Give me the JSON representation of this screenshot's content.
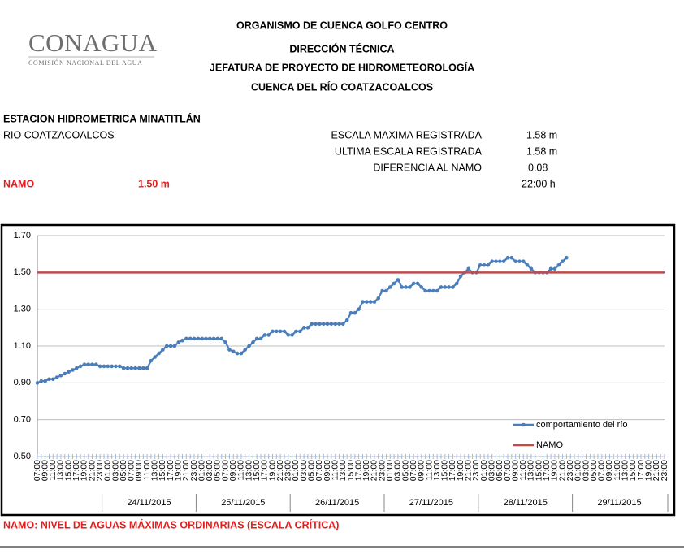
{
  "header": {
    "logo": "CONAGUA",
    "logo_subtitle": "COMISIÓN NACIONAL DEL AGUA",
    "lines": [
      "ORGANISMO DE CUENCA GOLFO CENTRO",
      "DIRECCIÓN TÉCNICA",
      "JEFATURA DE PROYECTO DE HIDROMETEOROLOGÍA",
      "CUENCA DEL RÍO COATZACOALCOS"
    ]
  },
  "station": {
    "name": "ESTACION HIDROMETRICA MINATITLÁN",
    "river": "RIO COATZACOALCOS",
    "max_label": "ESCALA MAXIMA REGISTRADA",
    "max_value": "1.58 m",
    "last_label": "ULTIMA ESCALA REGISTRADA",
    "last_value": "1.58 m",
    "diff_label": "DIFERENCIA AL NAMO",
    "diff_value": "0.08",
    "time": "22:00 h",
    "namo_label": "NAMO",
    "namo_value": "1.50 m"
  },
  "footer": "NAMO: NIVEL DE AGUAS MÁXIMAS ORDINARIAS (ESCALA CRÍTICA)",
  "chart_data": {
    "type": "line",
    "categories": [
      "07:00",
      null,
      "09:00",
      null,
      "11:00",
      null,
      "13:00",
      null,
      "15:00",
      null,
      "17:00",
      null,
      "19:00",
      null,
      "21:00",
      null,
      "23:00",
      null,
      "01:00",
      null,
      "03:00",
      null,
      "05:00",
      null,
      "07:00",
      null,
      "09:00",
      null,
      "11:00",
      null,
      "13:00",
      null,
      "15:00",
      null,
      "17:00",
      null,
      "19:00",
      null,
      "21:00",
      null,
      "23:00",
      null,
      "01:00",
      null,
      "03:00",
      null,
      "05:00",
      null,
      "07:00",
      null,
      "09:00",
      null,
      "11:00",
      null,
      "13:00",
      null,
      "15:00",
      null,
      "17:00",
      null,
      "19:00",
      null,
      "21:00",
      null,
      "23:00",
      null,
      "01:00",
      null,
      "03:00",
      null,
      "05:00",
      null,
      "07:00",
      null,
      "09:00",
      null,
      "11:00",
      null,
      "13:00",
      null,
      "15:00",
      null,
      "17:00",
      null,
      "19:00",
      null,
      "21:00",
      null,
      "23:00",
      null,
      "01:00",
      null,
      "03:00",
      null,
      "05:00",
      null,
      "07:00",
      null,
      "09:00",
      null,
      "11:00",
      null,
      "13:00",
      null,
      "15:00",
      null,
      "17:00",
      null,
      "19:00",
      null,
      "21:00",
      null,
      "23:00",
      null,
      "01:00",
      null,
      "03:00",
      null,
      "05:00",
      null,
      "07:00",
      null,
      "09:00",
      null,
      "11:00",
      null,
      "13:00",
      null,
      "15:00",
      null,
      "17:00",
      null,
      "19:00",
      null,
      "21:00",
      null,
      "23:00",
      null,
      "01:00",
      null,
      "03:00",
      null,
      "05:00",
      null,
      "07:00",
      null,
      "09:00",
      null,
      "11:00",
      null,
      "13:00",
      null,
      "15:00",
      null,
      "17:00",
      null,
      "19:00",
      null,
      "21:00",
      null,
      "23:00"
    ],
    "category_groups": [
      "24/11/2015",
      "25/11/2015",
      "26/11/2015",
      "27/11/2015",
      "28/11/2015",
      "29/11/2015"
    ],
    "series": [
      {
        "name": "comportamiento del río",
        "color": "#4a7ebb",
        "values": [
          0.9,
          0.91,
          0.91,
          0.92,
          0.92,
          0.93,
          0.94,
          0.95,
          0.96,
          0.97,
          0.98,
          0.99,
          1.0,
          1.0,
          1.0,
          1.0,
          0.99,
          0.99,
          0.99,
          0.99,
          0.99,
          0.99,
          0.98,
          0.98,
          0.98,
          0.98,
          0.98,
          0.98,
          0.98,
          1.02,
          1.04,
          1.06,
          1.08,
          1.1,
          1.1,
          1.1,
          1.12,
          1.13,
          1.14,
          1.14,
          1.14,
          1.14,
          1.14,
          1.14,
          1.14,
          1.14,
          1.14,
          1.14,
          1.12,
          1.08,
          1.07,
          1.06,
          1.06,
          1.08,
          1.1,
          1.12,
          1.14,
          1.14,
          1.16,
          1.16,
          1.18,
          1.18,
          1.18,
          1.18,
          1.16,
          1.16,
          1.18,
          1.18,
          1.2,
          1.2,
          1.22,
          1.22,
          1.22,
          1.22,
          1.22,
          1.22,
          1.22,
          1.22,
          1.22,
          1.24,
          1.28,
          1.28,
          1.3,
          1.34,
          1.34,
          1.34,
          1.34,
          1.36,
          1.4,
          1.4,
          1.42,
          1.44,
          1.46,
          1.42,
          1.42,
          1.42,
          1.44,
          1.44,
          1.42,
          1.4,
          1.4,
          1.4,
          1.4,
          1.42,
          1.42,
          1.42,
          1.42,
          1.44,
          1.48,
          1.5,
          1.52,
          1.5,
          1.5,
          1.54,
          1.54,
          1.54,
          1.56,
          1.56,
          1.56,
          1.56,
          1.58,
          1.58,
          1.56,
          1.56,
          1.56,
          1.54,
          1.52,
          1.5,
          1.5,
          1.5,
          1.5,
          1.52,
          1.52,
          1.54,
          1.56,
          1.58,
          null,
          null,
          null,
          null,
          null,
          null,
          null,
          null,
          null,
          null,
          null,
          null,
          null,
          null,
          null,
          null,
          null,
          null,
          null,
          null,
          null,
          null,
          null,
          null,
          null
        ]
      },
      {
        "name": "NAMO",
        "color": "#be4b48",
        "values": [
          1.5,
          1.5,
          1.5,
          1.5,
          1.5,
          1.5,
          1.5,
          1.5,
          1.5,
          1.5,
          1.5,
          1.5,
          1.5,
          1.5,
          1.5,
          1.5,
          1.5,
          1.5,
          1.5,
          1.5,
          1.5,
          1.5,
          1.5,
          1.5,
          1.5,
          1.5,
          1.5,
          1.5,
          1.5,
          1.5,
          1.5,
          1.5,
          1.5,
          1.5,
          1.5,
          1.5,
          1.5,
          1.5,
          1.5,
          1.5,
          1.5,
          1.5,
          1.5,
          1.5,
          1.5,
          1.5,
          1.5,
          1.5,
          1.5,
          1.5,
          1.5,
          1.5,
          1.5,
          1.5,
          1.5,
          1.5,
          1.5,
          1.5,
          1.5,
          1.5,
          1.5,
          1.5,
          1.5,
          1.5,
          1.5,
          1.5,
          1.5,
          1.5,
          1.5,
          1.5,
          1.5,
          1.5,
          1.5,
          1.5,
          1.5,
          1.5,
          1.5,
          1.5,
          1.5,
          1.5,
          1.5,
          1.5,
          1.5,
          1.5,
          1.5,
          1.5,
          1.5,
          1.5,
          1.5,
          1.5,
          1.5,
          1.5,
          1.5,
          1.5,
          1.5,
          1.5,
          1.5,
          1.5,
          1.5,
          1.5,
          1.5,
          1.5,
          1.5,
          1.5,
          1.5,
          1.5,
          1.5,
          1.5,
          1.5,
          1.5,
          1.5,
          1.5,
          1.5,
          1.5,
          1.5,
          1.5,
          1.5,
          1.5,
          1.5,
          1.5,
          1.5,
          1.5,
          1.5,
          1.5,
          1.5,
          1.5,
          1.5,
          1.5,
          1.5,
          1.5,
          1.5,
          1.5,
          1.5,
          1.5,
          1.5,
          1.5,
          1.5,
          1.5,
          1.5,
          1.5,
          1.5,
          1.5,
          1.5,
          1.5,
          1.5,
          1.5,
          1.5,
          1.5,
          1.5,
          1.5,
          1.5,
          1.5,
          1.5,
          1.5,
          1.5,
          1.5,
          1.5,
          1.5,
          1.5,
          1.5,
          1.5
        ]
      }
    ],
    "ylim": [
      0.5,
      1.7
    ],
    "yticks": [
      {
        "value": 0.5,
        "label": "0.50"
      },
      {
        "value": 0.7,
        "label": "0.70"
      },
      {
        "value": 0.9,
        "label": "0.90"
      },
      {
        "value": 1.1,
        "label": "1.10"
      },
      {
        "value": 1.3,
        "label": "1.30"
      },
      {
        "value": 1.5,
        "label": "1.50"
      },
      {
        "value": 1.7,
        "label": "1.70"
      }
    ],
    "grid": true,
    "legend": "lower right"
  }
}
